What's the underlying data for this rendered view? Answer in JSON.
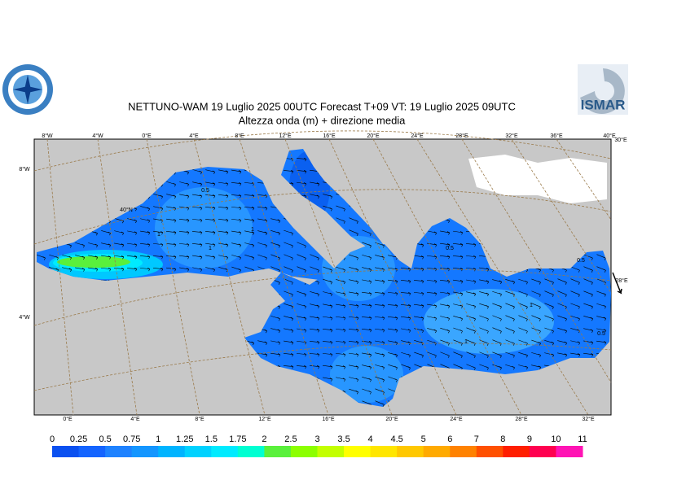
{
  "header": {
    "title": "NETTUNO-WAM  19  Luglio   2025 00UTC Forecast T+09 VT: 19  Luglio   2025 09UTC",
    "subtitle": "Altezza onda (m) + direzione media",
    "logo_right": "ISMAR"
  },
  "map": {
    "top_lon_labels": [
      "8°W",
      "4°W",
      "0°E",
      "4°E",
      "8°E",
      "12°E",
      "16°E",
      "20°E",
      "24°E",
      "28°E",
      "32°E",
      "36°E",
      "40°E",
      "30°E"
    ],
    "bottom_lon_labels": [
      "0°E",
      "4°E",
      "8°E",
      "12°E",
      "16°E",
      "20°E",
      "24°E",
      "28°E",
      "32°E"
    ],
    "left_labels": [
      "8°W",
      "4°W"
    ],
    "inner_labels": [
      "40°N",
      "28°E"
    ],
    "contour_labels": [
      "0.5",
      "1",
      "1",
      "0.5",
      "0.5",
      "1",
      "1",
      "0.5",
      "1"
    ]
  },
  "colorbar": {
    "labels": [
      0,
      0.25,
      0.5,
      0.75,
      1,
      1.25,
      1.5,
      1.75,
      2,
      2.5,
      3,
      3.5,
      4,
      4.5,
      5,
      6,
      7,
      8,
      9,
      10,
      11
    ],
    "colors": [
      "#0a50f0",
      "#1464ff",
      "#1e82ff",
      "#1496ff",
      "#00b4ff",
      "#00d2ff",
      "#00ebff",
      "#00ffd2",
      "#5af03c",
      "#8cff00",
      "#c3ff00",
      "#ffff00",
      "#ffe600",
      "#ffc800",
      "#ffaa00",
      "#ff8200",
      "#ff5000",
      "#ff1e00",
      "#ff0050",
      "#ff14b4"
    ]
  }
}
